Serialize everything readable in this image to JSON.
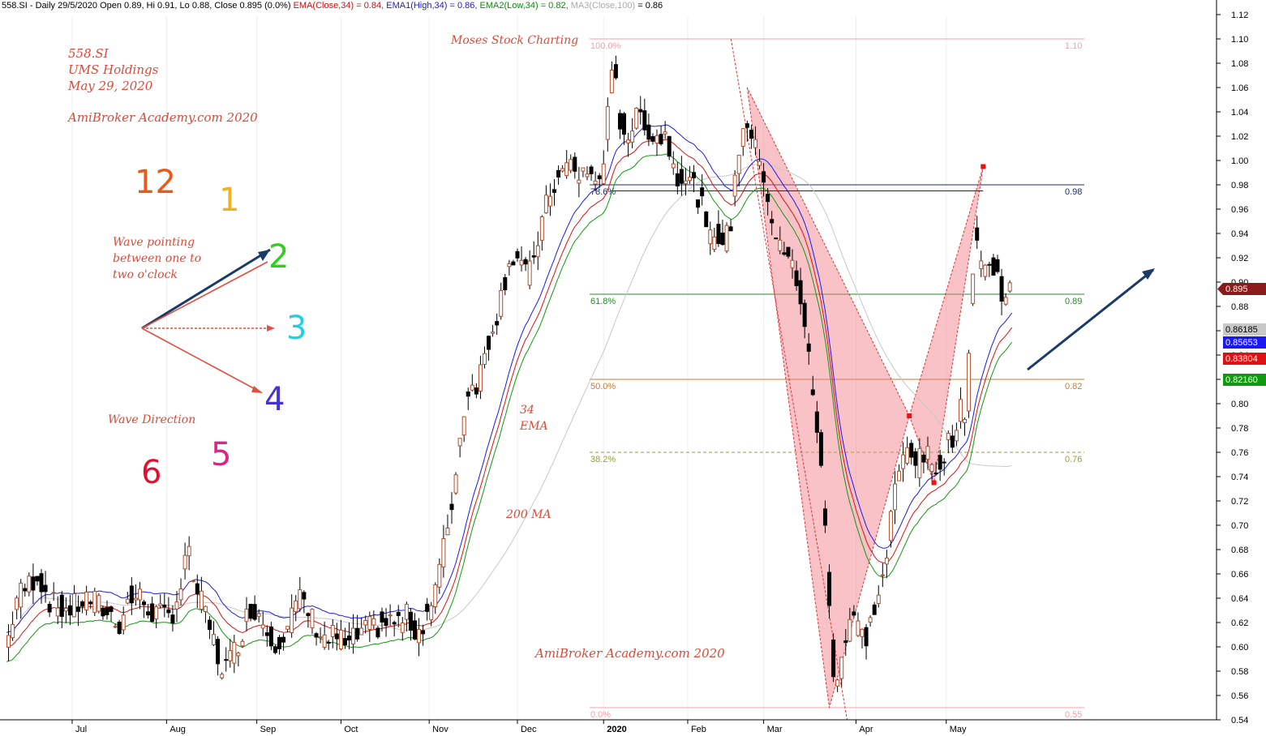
{
  "header": {
    "symbol": "558.SI - Daily 29/5/2020 Open 0.89, Hi 0.91, Lo 0.88, Close 0.895 (0.0%)",
    "ema34": "EMA(Close,34) = 0.84,",
    "ema_high": "EMA1(High,34) = 0.86,",
    "ema_low": "EMA2(Low,34) = 0.82,",
    "ma100": "MA3(Close,100)",
    "ma100_val": "= 0.86"
  },
  "annotations": {
    "ticker": "558.SI",
    "company": "UMS Holdings",
    "date": "May 29, 2020",
    "site_top": "AmiBroker Academy.com  2020",
    "site_bottom": "AmiBroker Academy.com  2020",
    "moses": "Moses Stock Charting",
    "wave_pointing": [
      "Wave pointing",
      "between one to",
      "two o'clock"
    ],
    "wave_direction": "Wave Direction",
    "ema_label": [
      "34",
      "EMA"
    ],
    "ma_label": "200 MA",
    "clock": [
      {
        "label": "12",
        "color": "#e85a1a"
      },
      {
        "label": "1",
        "color": "#f0b020"
      },
      {
        "label": "2",
        "color": "#33cc22"
      },
      {
        "label": "3",
        "color": "#22d0e0"
      },
      {
        "label": "4",
        "color": "#4433dd"
      },
      {
        "label": "5",
        "color": "#e0228a"
      },
      {
        "label": "6",
        "color": "#e01030"
      }
    ]
  },
  "chart_data": {
    "type": "candlestick",
    "y_axis": {
      "min": 0.54,
      "max": 1.12,
      "ticks": [
        "0.54",
        "0.56",
        "0.58",
        "0.60",
        "0.62",
        "0.64",
        "0.66",
        "0.68",
        "0.70",
        "0.72",
        "0.74",
        "0.76",
        "0.78",
        "0.80",
        "0.82",
        "0.84",
        "0.86",
        "0.88",
        "0.90",
        "0.92",
        "0.94",
        "0.96",
        "0.98",
        "1.00",
        "1.02",
        "1.04",
        "1.06",
        "1.08",
        "1.10",
        "1.12"
      ]
    },
    "x_axis_labels": [
      "Jul",
      "Aug",
      "Sep",
      "Oct",
      "Nov",
      "Dec",
      "2020",
      "Feb",
      "Mar",
      "Apr",
      "May"
    ],
    "price_tags": [
      {
        "label": "0.895",
        "value": 0.895,
        "color": "#8b1a1a"
      },
      {
        "label": "0.86185",
        "value": 0.86185,
        "color": "#c8c8c8"
      },
      {
        "label": "0.85653",
        "value": 0.85653,
        "color": "#1a1aee"
      },
      {
        "label": "0.83804",
        "value": 0.83804,
        "color": "#dd1111"
      },
      {
        "label": "0.82160",
        "value": 0.8216,
        "color": "#119911"
      }
    ],
    "fib_levels": [
      {
        "pct": "100.0%",
        "value": 1.1,
        "label": "1.10",
        "color": "#f5a0a8"
      },
      {
        "pct": "78.6%",
        "value": 0.98,
        "label": "0.98",
        "color": "#1a2a7a"
      },
      {
        "pct": "61.8%",
        "value": 0.89,
        "label": "0.89",
        "color": "#2a8a2a"
      },
      {
        "pct": "50.0%",
        "value": 0.82,
        "label": "0.82",
        "color": "#c87830"
      },
      {
        "pct": "38.2%",
        "value": 0.76,
        "label": "0.76",
        "color": "#9aa030"
      },
      {
        "pct": "0.0%",
        "value": 0.55,
        "label": "0.55",
        "color": "#f5a0a8"
      }
    ],
    "price_anchors": [
      [
        0,
        0.6
      ],
      [
        5,
        0.64
      ],
      [
        15,
        0.66
      ],
      [
        22,
        0.635
      ],
      [
        30,
        0.63
      ],
      [
        40,
        0.64
      ],
      [
        48,
        0.63
      ],
      [
        55,
        0.62
      ],
      [
        60,
        0.64
      ],
      [
        65,
        0.64
      ],
      [
        70,
        0.63
      ],
      [
        75,
        0.625
      ],
      [
        80,
        0.625
      ],
      [
        85,
        0.65
      ],
      [
        88,
        0.68
      ],
      [
        92,
        0.65
      ],
      [
        96,
        0.63
      ],
      [
        100,
        0.61
      ],
      [
        104,
        0.585
      ],
      [
        108,
        0.585
      ],
      [
        112,
        0.6
      ],
      [
        116,
        0.62
      ],
      [
        120,
        0.635
      ],
      [
        124,
        0.625
      ],
      [
        128,
        0.61
      ],
      [
        132,
        0.605
      ],
      [
        136,
        0.615
      ],
      [
        140,
        0.63
      ],
      [
        144,
        0.64
      ],
      [
        148,
        0.625
      ],
      [
        152,
        0.615
      ],
      [
        156,
        0.605
      ],
      [
        160,
        0.61
      ],
      [
        166,
        0.6
      ],
      [
        172,
        0.61
      ],
      [
        178,
        0.615
      ],
      [
        184,
        0.62
      ],
      [
        190,
        0.62
      ],
      [
        196,
        0.625
      ],
      [
        200,
        0.61
      ],
      [
        204,
        0.625
      ],
      [
        208,
        0.64
      ],
      [
        212,
        0.67
      ],
      [
        218,
        0.73
      ],
      [
        224,
        0.81
      ],
      [
        230,
        0.82
      ],
      [
        236,
        0.86
      ],
      [
        240,
        0.88
      ],
      [
        245,
        0.92
      ],
      [
        250,
        0.92
      ],
      [
        254,
        0.9
      ],
      [
        258,
        0.93
      ],
      [
        262,
        0.955
      ],
      [
        266,
        0.98
      ],
      [
        270,
        0.985
      ],
      [
        274,
        1.0
      ],
      [
        278,
        0.985
      ],
      [
        282,
        0.995
      ],
      [
        286,
        0.98
      ],
      [
        290,
        0.99
      ],
      [
        294,
        1.05
      ],
      [
        296,
        1.08
      ],
      [
        298,
        1.04
      ],
      [
        302,
        1.02
      ],
      [
        306,
        1.03
      ],
      [
        310,
        1.04
      ],
      [
        314,
        1.02
      ],
      [
        318,
        1.02
      ],
      [
        322,
        1.02
      ],
      [
        326,
        0.99
      ],
      [
        330,
        0.99
      ],
      [
        334,
        0.98
      ],
      [
        338,
        0.97
      ],
      [
        342,
        0.93
      ],
      [
        346,
        0.945
      ],
      [
        350,
        0.93
      ],
      [
        353,
        0.95
      ],
      [
        356,
        1.0
      ],
      [
        360,
        1.04
      ],
      [
        364,
        1.01
      ],
      [
        368,
        1.0
      ],
      [
        372,
        0.96
      ],
      [
        376,
        0.93
      ],
      [
        380,
        0.92
      ],
      [
        384,
        0.91
      ],
      [
        388,
        0.88
      ],
      [
        392,
        0.82
      ],
      [
        396,
        0.77
      ],
      [
        400,
        0.67
      ],
      [
        402,
        0.6
      ],
      [
        404,
        0.57
      ],
      [
        408,
        0.6
      ],
      [
        412,
        0.63
      ],
      [
        416,
        0.61
      ],
      [
        420,
        0.61
      ],
      [
        424,
        0.64
      ],
      [
        428,
        0.66
      ],
      [
        432,
        0.72
      ],
      [
        436,
        0.75
      ],
      [
        440,
        0.77
      ],
      [
        444,
        0.75
      ],
      [
        448,
        0.76
      ],
      [
        452,
        0.74
      ],
      [
        456,
        0.76
      ],
      [
        460,
        0.77
      ],
      [
        464,
        0.79
      ],
      [
        468,
        0.8
      ],
      [
        470,
        0.88
      ],
      [
        472,
        0.95
      ],
      [
        474,
        0.92
      ],
      [
        478,
        0.91
      ],
      [
        482,
        0.91
      ],
      [
        486,
        0.89
      ],
      [
        490,
        0.895
      ]
    ],
    "harmonic_pattern": [
      [
        361,
        1.06
      ],
      [
        401,
        0.55
      ],
      [
        440,
        0.79
      ],
      [
        452,
        0.735
      ],
      [
        476,
        0.995
      ]
    ],
    "pattern_markers": [
      [
        440,
        0.79
      ],
      [
        452,
        0.735
      ],
      [
        476,
        0.995
      ]
    ]
  }
}
